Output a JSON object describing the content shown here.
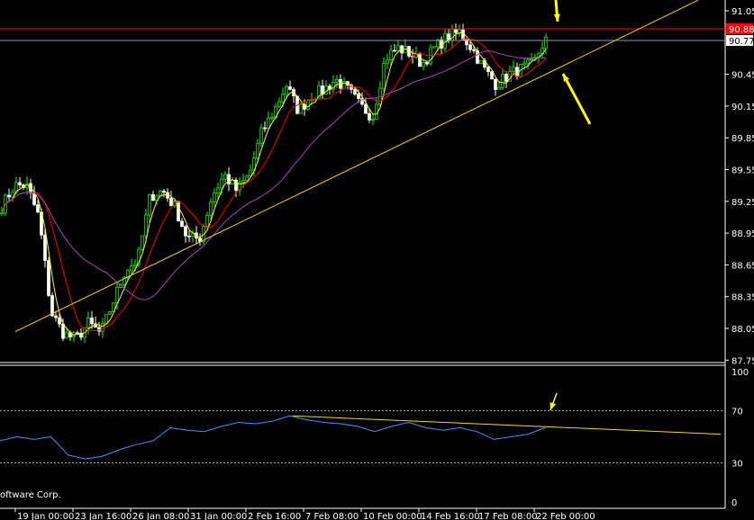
{
  "chart_data": {
    "type": "candlestick",
    "price_axis": {
      "ticks": [
        91.05,
        90.45,
        90.15,
        89.85,
        89.55,
        89.25,
        88.95,
        88.65,
        88.35,
        88.05,
        87.75
      ],
      "range": [
        87.72,
        91.15
      ]
    },
    "time_axis": {
      "ticks": [
        "19 Jan 00:00",
        "23 Jan 16:00",
        "26 Jan 08:00",
        "31 Jan 00:00",
        "2 Feb 16:00",
        "7 Feb 08:00",
        "10 Feb 00:00",
        "14 Feb 16:00",
        "17 Feb 08:00",
        "22 Feb 00:00"
      ]
    },
    "close_path": [
      89.2,
      89.4,
      89.4,
      89.1,
      88.2,
      88.0,
      87.95,
      88.1,
      88.0,
      88.3,
      88.6,
      88.7,
      89.3,
      89.35,
      89.2,
      88.9,
      88.9,
      89.3,
      89.5,
      89.35,
      89.5,
      89.9,
      90.1,
      90.35,
      90.1,
      90.25,
      90.3,
      90.4,
      90.3,
      90.15,
      90.05,
      90.6,
      90.7,
      90.65,
      90.55,
      90.7,
      90.8,
      90.85,
      90.7,
      90.5,
      90.35,
      90.45,
      90.5,
      90.55,
      90.8
    ],
    "price_lines": [
      {
        "price": 90.88,
        "label": "90.88",
        "color": "#ff0000"
      },
      {
        "price": 90.77,
        "label": "90.77",
        "color": "#8899aa"
      }
    ],
    "trendline": {
      "start_price": 88.02,
      "end_price": 91.15,
      "color": "#ffd700"
    },
    "moving_averages": [
      {
        "color": "#ffff00"
      },
      {
        "color": "#ff0000"
      },
      {
        "color": "#b040c0"
      }
    ],
    "candle_colors": {
      "up": "#00ff00",
      "down": "#ffffff"
    },
    "oscillator": {
      "ticks": [
        100,
        70,
        30,
        0
      ],
      "levels": [
        70,
        30
      ],
      "range": [
        0,
        100
      ],
      "values": [
        47,
        50,
        48,
        50,
        36,
        33,
        35,
        40,
        44,
        47,
        57,
        55,
        54,
        58,
        61,
        60,
        62,
        66,
        63,
        61,
        60,
        58,
        54,
        58,
        61,
        57,
        55,
        57,
        54,
        48,
        50,
        52,
        57
      ],
      "trendline": {
        "start": 66,
        "end": 52
      },
      "color": "#3399ff"
    },
    "copyright": "oftware Corp.",
    "annotations": [
      {
        "type": "arrow",
        "color": "#ffff00"
      },
      {
        "type": "arrow",
        "color": "#ffff00"
      },
      {
        "type": "arrow",
        "color": "#ffff00"
      }
    ]
  }
}
